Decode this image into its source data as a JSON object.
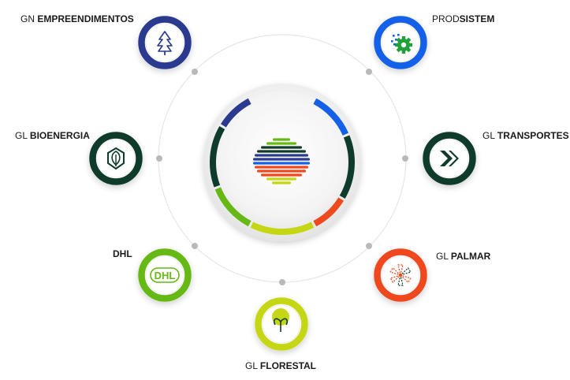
{
  "companies": [
    {
      "id": "gn",
      "prefix": "GN",
      "name": "EMPREENDIMENTOS",
      "color": "#2a3a8f",
      "icon": "tree-icon"
    },
    {
      "id": "prodsistem",
      "prefix": "PROD",
      "name": "SISTEM",
      "color": "#1560e8",
      "icon": "gear-icon"
    },
    {
      "id": "bioenergia",
      "prefix": "GL",
      "name": "BIOENERGIA",
      "color": "#0f3b2a",
      "icon": "leaf-shield-icon"
    },
    {
      "id": "transportes",
      "prefix": "GL",
      "name": "TRANSPORTES",
      "color": "#0f3b2a",
      "icon": "chevron-arrows-icon"
    },
    {
      "id": "dhl",
      "prefix": "",
      "name": "DHL",
      "color": "#66b814",
      "icon": "dhl-logo-icon"
    },
    {
      "id": "palmar",
      "prefix": "GL",
      "name": "PALMAR",
      "color": "#f0481e",
      "icon": "palm-icon"
    },
    {
      "id": "florestal",
      "prefix": "GL",
      "name": "FLORESTAL",
      "color": "#c4d614",
      "icon": "sprout-icon"
    }
  ],
  "colors": {
    "ring_gray": "#e6e6e6",
    "dot_gray": "#b9b9b9",
    "dark_green": "#0f3b2a",
    "navy": "#2a3a8f",
    "blue": "#1560e8",
    "orange": "#f0481e",
    "lime": "#c4d614",
    "green": "#66b814"
  }
}
